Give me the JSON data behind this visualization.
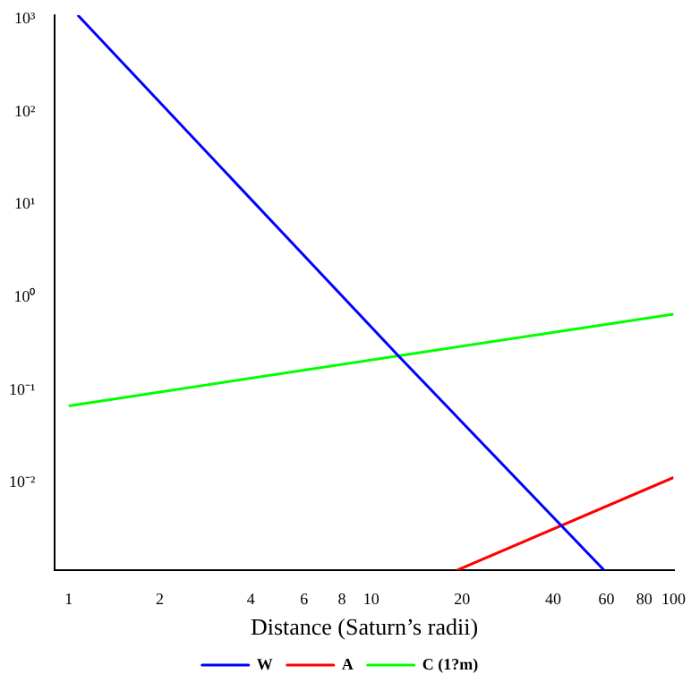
{
  "chart_data": {
    "type": "line",
    "xlabel": "Distance (Saturn’s radii)",
    "log": "xy",
    "grid": false,
    "legend": "bottom",
    "marker": "none",
    "line_style": "solid",
    "xlim": [
      0.9,
      100
    ],
    "ylim": [
      0.00115,
      1100
    ],
    "xticks": [
      1,
      2,
      4,
      6,
      8,
      10,
      20,
      40,
      60,
      80,
      100
    ],
    "yticks": [
      {
        "value": 1000,
        "label": "10³"
      },
      {
        "value": 100,
        "label": "10²"
      },
      {
        "value": 10,
        "label": "10¹"
      },
      {
        "value": 1,
        "label": "10⁰"
      },
      {
        "value": 0.1,
        "label": "10⁻¹"
      },
      {
        "value": 0.01,
        "label": "10⁻²"
      }
    ],
    "series": [
      {
        "name": "W",
        "color": "#0000ff",
        "x": [
          1.07,
          12.3,
          59
        ],
        "values": [
          1100,
          0.235,
          0.00115
        ]
      },
      {
        "name": "A",
        "color": "#ff0000",
        "x": [
          19.2,
          100
        ],
        "values": [
          0.00115,
          0.0115
        ]
      },
      {
        "name": "C (1?m)",
        "color": "#00ff00",
        "x": [
          1,
          100
        ],
        "values": [
          0.068,
          0.66
        ]
      }
    ]
  }
}
